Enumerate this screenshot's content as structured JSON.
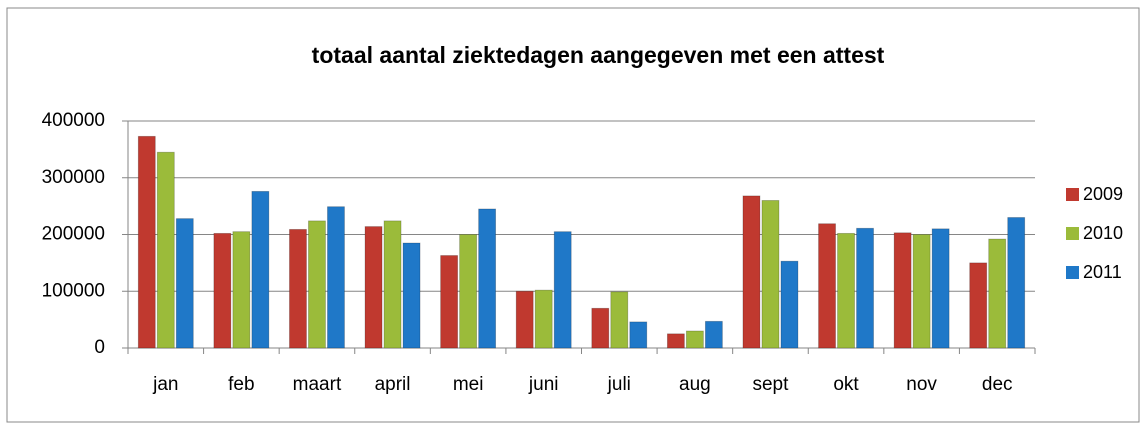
{
  "chart_data": {
    "type": "bar",
    "title": "totaal aantal ziektedagen aangegeven met een attest",
    "categories": [
      "jan",
      "feb",
      "maart",
      "april",
      "mei",
      "juni",
      "juli",
      "aug",
      "sept",
      "okt",
      "nov",
      "dec"
    ],
    "series": [
      {
        "name": "2009",
        "color": "#c0392f",
        "values": [
          373000,
          202000,
          209000,
          214000,
          163000,
          100000,
          70000,
          25000,
          268000,
          219000,
          203000,
          150000
        ]
      },
      {
        "name": "2010",
        "color": "#9bbb3a",
        "values": [
          345000,
          205000,
          224000,
          224000,
          200000,
          102000,
          99000,
          30000,
          260000,
          202000,
          200000,
          192000
        ]
      },
      {
        "name": "2011",
        "color": "#1f78c8",
        "values": [
          228000,
          276000,
          249000,
          185000,
          245000,
          205000,
          46000,
          47000,
          153000,
          211000,
          210000,
          230000
        ]
      }
    ],
    "ylim": [
      0,
      400000
    ],
    "yticks": [
      0,
      100000,
      200000,
      300000,
      400000
    ],
    "grid": true,
    "legend": "right"
  }
}
